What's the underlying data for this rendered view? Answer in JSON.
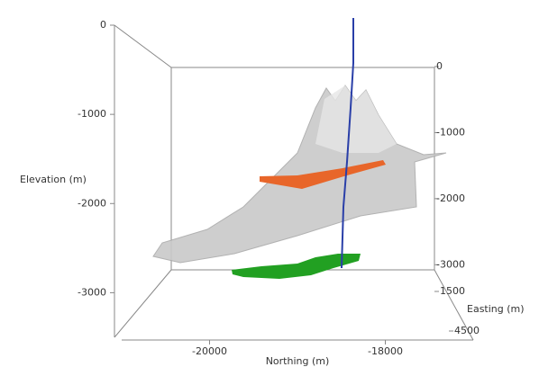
{
  "chart_data": {
    "type": "surface3d",
    "zlabel": "Elevation (m)",
    "zlim": [
      0,
      -3500
    ],
    "zticks": [
      0,
      -1000,
      -2000,
      -3000
    ],
    "xlabel": "Northing (m)",
    "xlim": [
      -21000,
      -17000
    ],
    "xticks": [
      -20000,
      -18000
    ],
    "ylabel": "Easting (m)",
    "ylim": [
      1500,
      4500
    ],
    "yticks": [
      1500,
      4500
    ]
  }
}
